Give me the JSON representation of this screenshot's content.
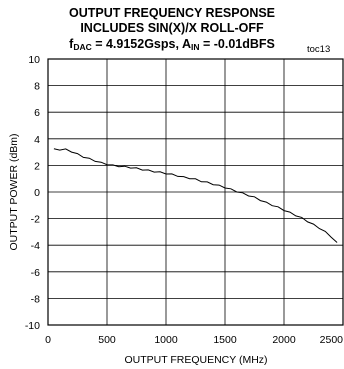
{
  "chart_data": {
    "type": "line",
    "title": {
      "line1": "OUTPUT FREQUENCY RESPONSE",
      "line2": "INCLUDES SIN(X)/X ROLL-OFF",
      "line3_fdac_prefix": "f",
      "line3_fdac_sub": "DAC",
      "line3_fdac_value": " = 4.9152Gsps, A",
      "line3_ain_sub": "IN",
      "line3_ain_value": " = -0.01dBFS"
    },
    "figure_tag": "toc13",
    "xlabel": "OUTPUT FREQUENCY (MHz)",
    "ylabel": "OUTPUT POWER (dBm)",
    "xlim": [
      0,
      2500
    ],
    "ylim": [
      -10,
      10
    ],
    "x_ticks": [
      "0",
      "500",
      "1000",
      "1500",
      "2000",
      "2500"
    ],
    "y_ticks": [
      "10",
      "8",
      "6",
      "4",
      "2",
      "0",
      "-2",
      "-4",
      "-6",
      "-8",
      "-10"
    ],
    "grid": true,
    "series": [
      {
        "x": [
          50,
          100,
          150,
          200,
          250,
          300,
          350,
          400,
          450,
          500,
          550,
          600,
          650,
          700,
          750,
          800,
          850,
          900,
          950,
          1000,
          1050,
          1100,
          1150,
          1200,
          1250,
          1300,
          1350,
          1400,
          1450,
          1500,
          1550,
          1600,
          1650,
          1700,
          1750,
          1800,
          1850,
          1900,
          1950,
          2000,
          2050,
          2100,
          2150,
          2200,
          2250,
          2300,
          2350,
          2400,
          2450
        ],
        "y": [
          3.25,
          3.2,
          3.2,
          3.05,
          2.85,
          2.65,
          2.5,
          2.35,
          2.2,
          2.1,
          2.0,
          1.95,
          1.9,
          1.85,
          1.78,
          1.7,
          1.62,
          1.55,
          1.48,
          1.4,
          1.32,
          1.22,
          1.12,
          1.05,
          0.95,
          0.82,
          0.72,
          0.6,
          0.48,
          0.35,
          0.2,
          0.05,
          -0.1,
          -0.25,
          -0.4,
          -0.6,
          -0.8,
          -0.98,
          -1.15,
          -1.35,
          -1.55,
          -1.75,
          -1.95,
          -2.2,
          -2.45,
          -2.7,
          -3.0,
          -3.35,
          -3.8
        ]
      }
    ]
  }
}
